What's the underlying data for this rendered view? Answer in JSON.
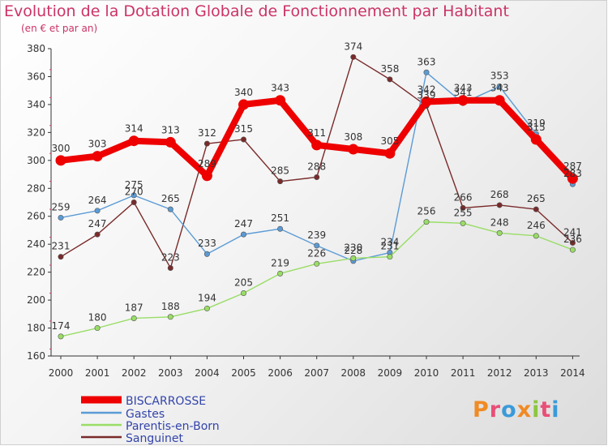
{
  "header": {
    "title": "Evolution de la Dotation Globale de Fonctionnement par Habitant",
    "subtitle": "(en € et par an)"
  },
  "logo": {
    "text": "Proxiti"
  },
  "chart_data": {
    "type": "line",
    "title": "Evolution de la Dotation Globale de Fonctionnement par Habitant",
    "subtitle": "(en € et par an)",
    "x": [
      "2000",
      "2001",
      "2002",
      "2003",
      "2004",
      "2005",
      "2006",
      "2007",
      "2008",
      "2009",
      "2010",
      "2011",
      "2012",
      "2013",
      "2014"
    ],
    "ylim": [
      160,
      380
    ],
    "yticks": [
      160,
      180,
      200,
      220,
      240,
      260,
      280,
      300,
      320,
      340,
      360,
      380
    ],
    "grid": false,
    "legend_position": "bottom-left",
    "series": [
      {
        "name": "BISCARROSSE",
        "color": "#ee0000",
        "values": [
          300,
          303,
          314,
          313,
          289,
          340,
          343,
          311,
          308,
          305,
          342,
          343,
          343,
          315,
          287
        ]
      },
      {
        "name": "Gastes",
        "color": "#5b9bd5",
        "values": [
          259,
          264,
          275,
          265,
          233,
          247,
          251,
          239,
          228,
          234,
          363,
          341,
          353,
          319,
          283
        ]
      },
      {
        "name": "Parentis-en-Born",
        "color": "#99dd66",
        "values": [
          174,
          180,
          187,
          188,
          194,
          205,
          219,
          226,
          230,
          231,
          256,
          255,
          248,
          246,
          236
        ]
      },
      {
        "name": "Sanguinet",
        "color": "#7a2a2a",
        "values": [
          231,
          247,
          270,
          223,
          312,
          315,
          285,
          288,
          374,
          358,
          339,
          266,
          268,
          265,
          241
        ]
      }
    ]
  }
}
